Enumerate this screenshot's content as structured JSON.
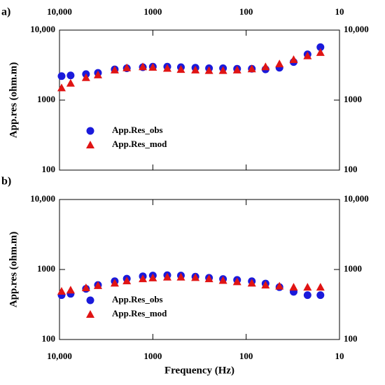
{
  "chart_data": [
    {
      "type": "scatter",
      "panel_label": "a)",
      "y_label": "App.res (ohm.m)",
      "log_x": true,
      "log_y": true,
      "xlim": [
        10000,
        10
      ],
      "ylim": [
        100,
        10000
      ],
      "xticks": [
        {
          "value": 10000,
          "label": "10,000"
        },
        1000,
        100,
        10
      ],
      "yticks": [
        100,
        1000,
        {
          "value": 10000,
          "label": "10,000"
        }
      ],
      "x_tick_labels": "top",
      "legend": "left",
      "x": [
        9500,
        7600,
        5200,
        3870,
        2560,
        1900,
        1280,
        1000,
        700,
        500,
        350,
        250,
        177,
        125,
        87,
        62,
        44,
        31,
        22,
        16
      ],
      "series": [
        {
          "name": "App.Res_obs",
          "color": "#1a1adb",
          "marker": "circle",
          "values": [
            2200,
            2250,
            2350,
            2450,
            2750,
            2850,
            2950,
            3000,
            3000,
            2950,
            2900,
            2850,
            2850,
            2800,
            2800,
            2750,
            2900,
            3500,
            4500,
            5700
          ]
        },
        {
          "name": "App.Res_mod",
          "color": "#e01414",
          "marker": "triangle",
          "values": [
            1500,
            1750,
            2100,
            2300,
            2700,
            2900,
            3000,
            2950,
            2850,
            2750,
            2700,
            2650,
            2650,
            2700,
            2800,
            3000,
            3300,
            3800,
            4300,
            4800
          ]
        }
      ]
    },
    {
      "type": "scatter",
      "panel_label": "b)",
      "y_label": "App.res (ohm.m)",
      "x_label": "Frequency (Hz)",
      "log_x": true,
      "log_y": true,
      "xlim": [
        10000,
        10
      ],
      "ylim": [
        100,
        10000
      ],
      "xticks": [
        {
          "value": 10000,
          "label": "10,000"
        },
        1000,
        100,
        10
      ],
      "yticks": [
        100,
        1000,
        {
          "value": 10000,
          "label": "10,000"
        }
      ],
      "x_tick_labels": "bottom",
      "legend": "left",
      "x": [
        9500,
        7600,
        5200,
        3870,
        2560,
        1900,
        1280,
        1000,
        700,
        500,
        350,
        250,
        177,
        125,
        87,
        62,
        44,
        31,
        22,
        16
      ],
      "series": [
        {
          "name": "App.Res_obs",
          "color": "#1a1adb",
          "marker": "circle",
          "values": [
            430,
            450,
            530,
            600,
            680,
            740,
            800,
            820,
            830,
            820,
            790,
            760,
            730,
            710,
            680,
            630,
            560,
            480,
            430,
            430
          ]
        },
        {
          "name": "App.Res_mod",
          "color": "#e01414",
          "marker": "triangle",
          "values": [
            490,
            510,
            550,
            590,
            640,
            690,
            740,
            760,
            780,
            780,
            770,
            740,
            700,
            670,
            640,
            600,
            580,
            560,
            560,
            560
          ]
        }
      ]
    }
  ]
}
